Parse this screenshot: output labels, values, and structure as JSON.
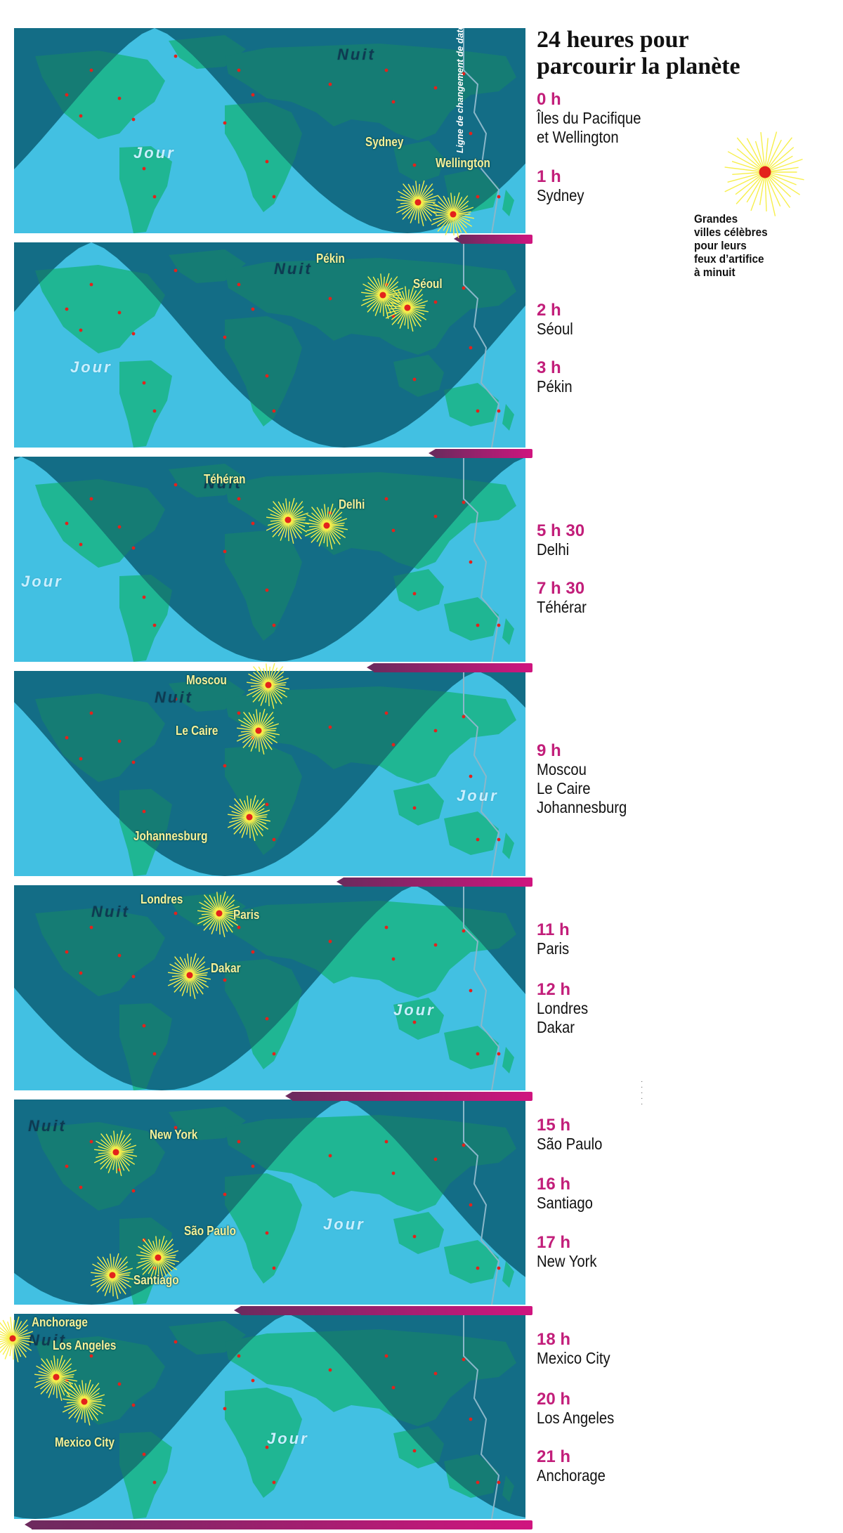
{
  "title_lines": [
    "24 heures pour",
    "parcourir la planète"
  ],
  "dateline_label": "Ligne de changement de date",
  "map_words": {
    "day": "Jour",
    "night": "Nuit"
  },
  "legend": {
    "icon": "firework-burst-icon",
    "lines": [
      "Grandes",
      "villes célèbres",
      "pour leurs",
      "feux d’artifice",
      "à minuit"
    ]
  },
  "colors": {
    "day": "#42c0e2",
    "night": "#136d86",
    "land_day": "#1fb693",
    "land_night": "#157c74",
    "accent": "#c21e7a",
    "bar_start": "#6d2a5e",
    "bar_end": "#d0157f",
    "burst": "#f7ef4c",
    "dot": "#e3221c"
  },
  "panels": [
    {
      "cities": [
        "Sydney",
        "Wellington"
      ],
      "progress_fraction": 0.14,
      "timeline": [
        {
          "hour": "0 h",
          "names": [
            "Îles du Pacifique",
            "et Wellington"
          ]
        },
        {
          "hour": "1 h",
          "names": [
            "Sydney"
          ]
        }
      ]
    },
    {
      "cities": [
        "Pékin",
        "Séoul"
      ],
      "progress_fraction": 0.19,
      "timeline": [
        {
          "hour": "2 h",
          "names": [
            "Séoul"
          ]
        },
        {
          "hour": "3 h",
          "names": [
            "Pékin"
          ]
        }
      ]
    },
    {
      "cities": [
        "Téhéran",
        "Delhi"
      ],
      "progress_fraction": 0.31,
      "timeline": [
        {
          "hour": "5 h 30",
          "names": [
            "Delhi"
          ]
        },
        {
          "hour": "7 h 30",
          "names": [
            "Téhérar"
          ]
        }
      ]
    },
    {
      "cities": [
        "Moscou",
        "Le Caire",
        "Johannesburg"
      ],
      "progress_fraction": 0.37,
      "timeline": [
        {
          "hour": "9 h",
          "names": [
            "Moscou",
            "Le Caire",
            "Johannesburg"
          ]
        }
      ]
    },
    {
      "cities": [
        "Londres",
        "Paris",
        "Dakar"
      ],
      "progress_fraction": 0.47,
      "timeline": [
        {
          "hour": "11 h",
          "names": [
            "Paris"
          ]
        },
        {
          "hour": "12 h",
          "names": [
            "Londres",
            "Dakar"
          ]
        }
      ]
    },
    {
      "cities": [
        "New York",
        "São Paulo",
        "Santiago"
      ],
      "progress_fraction": 0.57,
      "timeline": [
        {
          "hour": "15 h",
          "names": [
            "São Paulo"
          ]
        },
        {
          "hour": "16 h",
          "names": [
            "Santiago"
          ]
        },
        {
          "hour": "17 h",
          "names": [
            "New York"
          ]
        }
      ]
    },
    {
      "cities": [
        "Anchorage",
        "Los Angeles",
        "Mexico City"
      ],
      "progress_fraction": 0.98,
      "timeline": [
        {
          "hour": "18 h",
          "names": [
            "Mexico City"
          ]
        },
        {
          "hour": "20 h",
          "names": [
            "Los Angeles"
          ]
        },
        {
          "hour": "21 h",
          "names": [
            "Anchorage"
          ]
        }
      ]
    }
  ]
}
